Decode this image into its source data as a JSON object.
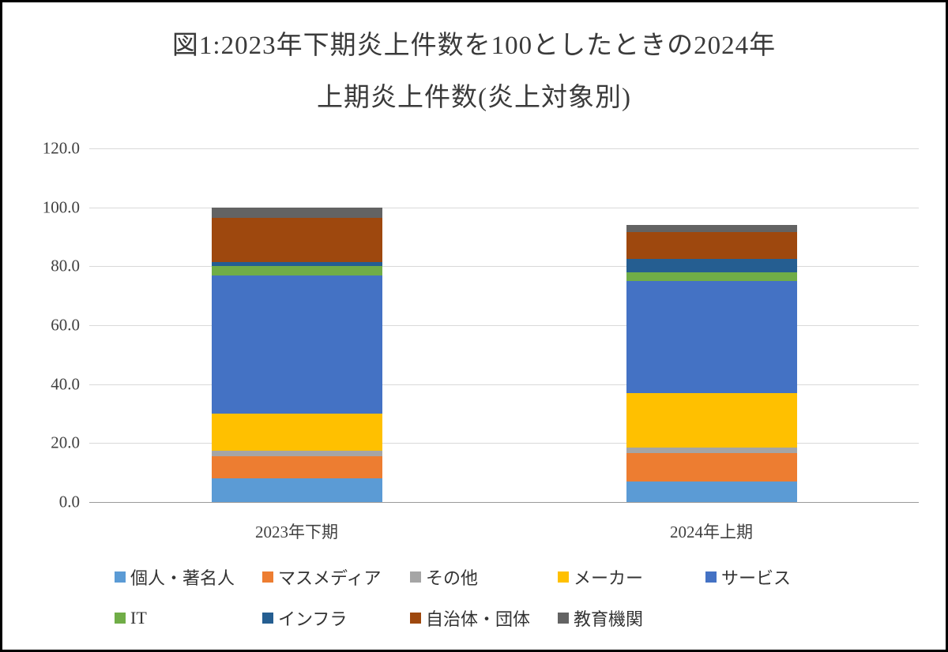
{
  "figure": {
    "background": "#ffffff",
    "border_color": "#000000"
  },
  "chart_data": {
    "type": "bar",
    "stacked": true,
    "title": "図1:2023年下期炎上件数を100としたときの2024年上期炎上件数(炎上対象別)",
    "title_lines": [
      "図1:2023年下期炎上件数を100としたときの2024年",
      "上期炎上件数(炎上対象別)"
    ],
    "categories": [
      "2023年下期",
      "2024年上期"
    ],
    "y_ticks": [
      "0.0",
      "20.0",
      "40.0",
      "60.0",
      "80.0",
      "100.0",
      "120.0"
    ],
    "ylim": [
      0,
      120
    ],
    "grid": true,
    "legend_position": "bottom",
    "series": [
      {
        "name": "個人・著名人",
        "color": "#5B9BD5",
        "values": [
          8,
          7
        ]
      },
      {
        "name": "マスメディア",
        "color": "#ED7D31",
        "values": [
          7.5,
          9.5
        ]
      },
      {
        "name": "その他",
        "color": "#A5A5A5",
        "values": [
          2,
          2
        ]
      },
      {
        "name": "メーカー",
        "color": "#FFC000",
        "values": [
          12.5,
          18.5
        ]
      },
      {
        "name": "サービス",
        "color": "#4472C4",
        "values": [
          47,
          38
        ]
      },
      {
        "name": "IT",
        "color": "#70AD47",
        "values": [
          3,
          3
        ]
      },
      {
        "name": "インフラ",
        "color": "#255E91",
        "values": [
          1.5,
          4.5
        ]
      },
      {
        "name": "自治体・団体",
        "color": "#9E480E",
        "values": [
          15,
          9
        ]
      },
      {
        "name": "教育機関",
        "color": "#636363",
        "values": [
          3.5,
          2.5
        ]
      }
    ],
    "totals": [
      100,
      94
    ]
  }
}
